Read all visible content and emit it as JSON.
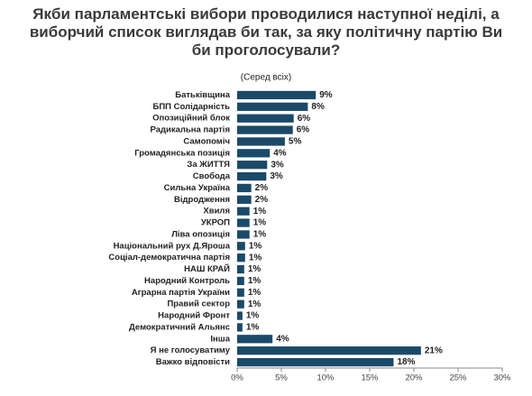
{
  "chart_data": {
    "type": "bar",
    "orientation": "horizontal",
    "title": "Якби парламентські вибори проводилися наступної неділі, а виборчий список виглядав би так, за яку політичну партію Ви би проголосували?",
    "subtitle": "(Серед всіх)",
    "categories": [
      "Батьківщина",
      "БПП Солідарність",
      "Опозиційний блок",
      "Радикальна партія",
      "Самопоміч",
      "Громадянська позиція",
      "За ЖИТТЯ",
      "Свобода",
      "Сильна Україна",
      "Відродження",
      "Хвиля",
      "УКРОП",
      "Ліва опозиція",
      "Національний рух Д.Яроша",
      "Соціал-демократична партія",
      "НАШ КРАЙ",
      "Народний Контроль",
      "Аграрна партія України",
      "Правий сектор",
      "Народний Фронт",
      "Демократичний Альянс",
      "Інша",
      "Я не голосуватиму",
      "Важко відповісти"
    ],
    "values": [
      8.9,
      8.0,
      6.4,
      6.3,
      5.4,
      3.7,
      3.4,
      3.3,
      1.6,
      1.6,
      1.4,
      1.4,
      1.4,
      0.9,
      0.9,
      0.8,
      0.8,
      0.8,
      0.8,
      0.6,
      0.6,
      4.0,
      20.8,
      17.7
    ],
    "value_labels": [
      "9%",
      "8%",
      "6%",
      "6%",
      "5%",
      "4%",
      "3%",
      "3%",
      "2%",
      "2%",
      "1%",
      "1%",
      "1%",
      "1%",
      "1%",
      "1%",
      "1%",
      "1%",
      "1%",
      "1%",
      "1%",
      "4%",
      "21%",
      "18%"
    ],
    "color": "#1b4a68",
    "xlim": [
      0,
      30
    ],
    "xticks": [
      {
        "value": 0,
        "label": "0%"
      },
      {
        "value": 5,
        "label": "5%"
      },
      {
        "value": 10,
        "label": "10%"
      },
      {
        "value": 15,
        "label": "15%"
      },
      {
        "value": 20,
        "label": "20%"
      },
      {
        "value": 25,
        "label": "25%"
      },
      {
        "value": 30,
        "label": "30%"
      }
    ]
  }
}
